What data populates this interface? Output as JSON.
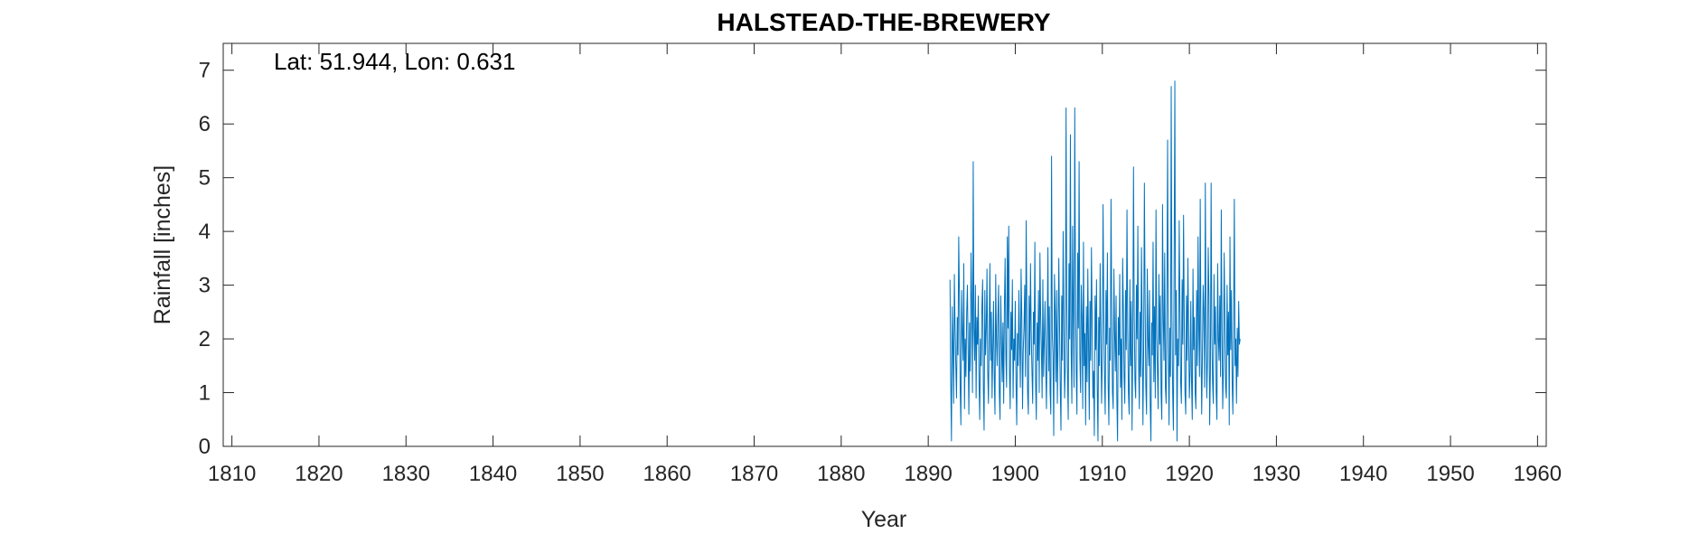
{
  "chart_data": {
    "type": "line",
    "title": "HALSTEAD-THE-BREWERY",
    "annotation": "Lat: 51.944, Lon: 0.631",
    "xlabel": "Year",
    "ylabel": "Rainfall [inches]",
    "xlim": [
      1809,
      1961
    ],
    "ylim": [
      0,
      7.5
    ],
    "xticks": [
      1810,
      1820,
      1830,
      1840,
      1850,
      1860,
      1870,
      1880,
      1890,
      1900,
      1910,
      1920,
      1930,
      1940,
      1950,
      1960
    ],
    "yticks": [
      0,
      1,
      2,
      3,
      4,
      5,
      6,
      7
    ],
    "grid": false,
    "series_color": "#0072BD",
    "series": [
      {
        "x_start": 1892.5,
        "step": 0.08333,
        "values": [
          3.1,
          1.2,
          0.1,
          2.6,
          1.9,
          0.8,
          3.2,
          2.2,
          1.5,
          0.9,
          2.4,
          1.7,
          3.9,
          2.8,
          1.1,
          0.4,
          2.9,
          2.1,
          1.6,
          3.4,
          0.7,
          2.0,
          1.3,
          2.5,
          3.0,
          1.8,
          0.6,
          2.3,
          1.4,
          3.6,
          2.7,
          1.0,
          5.3,
          2.2,
          1.6,
          3.0,
          0.9,
          2.4,
          1.9,
          2.8,
          1.2,
          0.5,
          2.0,
          1.5,
          2.6,
          3.1,
          1.1,
          0.3,
          2.9,
          1.7,
          2.2,
          3.3,
          1.4,
          0.8,
          2.1,
          3.4,
          1.6,
          2.5,
          0.9,
          1.8,
          2.7,
          1.3,
          0.6,
          3.2,
          2.0,
          1.5,
          2.4,
          3.0,
          1.0,
          0.5,
          2.8,
          1.9,
          1.2,
          2.3,
          0.8,
          2.6,
          3.5,
          1.7,
          1.1,
          3.9,
          2.2,
          4.1,
          1.4,
          0.7,
          2.5,
          1.8,
          3.1,
          0.9,
          2.0,
          1.6,
          2.7,
          1.2,
          0.4,
          2.1,
          1.5,
          2.9,
          1.9,
          1.1,
          3.3,
          2.4,
          0.7,
          1.8,
          2.2,
          3.0,
          1.3,
          4.2,
          2.6,
          1.0,
          0.6,
          2.8,
          1.7,
          3.4,
          2.1,
          1.4,
          0.8,
          2.5,
          1.9,
          3.8,
          1.2,
          0.5,
          2.3,
          1.6,
          2.9,
          1.0,
          3.6,
          2.4,
          1.8,
          0.9,
          3.1,
          1.3,
          2.0,
          2.7,
          1.5,
          0.7,
          2.2,
          3.7,
          1.4,
          2.6,
          1.0,
          0.6,
          5.4,
          2.1,
          1.7,
          0.2,
          3.2,
          2.5,
          1.2,
          2.9,
          0.8,
          1.9,
          3.5,
          2.3,
          1.1,
          0.3,
          2.8,
          1.6,
          4.0,
          2.2,
          0.9,
          1.5,
          6.3,
          2.7,
          1.3,
          0.5,
          3.4,
          2.0,
          5.8,
          1.8,
          0.8,
          4.1,
          2.5,
          1.1,
          6.3,
          2.9,
          1.4,
          0.6,
          3.6,
          2.2,
          5.3,
          1.7,
          1.0,
          3.0,
          2.4,
          0.7,
          3.8,
          1.5,
          2.1,
          0.4,
          2.6,
          1.2,
          3.3,
          1.9,
          0.5,
          2.7,
          1.6,
          3.7,
          2.3,
          0.9,
          1.4,
          0.2,
          2.8,
          1.8,
          3.1,
          1.1,
          0.1,
          2.4,
          1.5,
          3.4,
          2.0,
          0.8,
          1.7,
          4.5,
          2.6,
          1.3,
          0.6,
          2.9,
          1.9,
          3.6,
          1.2,
          0.4,
          2.2,
          1.6,
          4.6,
          2.5,
          1.0,
          0.7,
          3.3,
          2.1,
          1.4,
          2.8,
          0.9,
          0.1,
          2.4,
          1.7,
          3.2,
          1.1,
          2.0,
          0.5,
          3.5,
          2.6,
          1.3,
          0.8,
          2.9,
          1.8,
          4.4,
          2.2,
          1.0,
          0.6,
          3.1,
          1.5,
          2.7,
          0.3,
          1.9,
          5.2,
          2.4,
          1.2,
          0.9,
          3.0,
          2.0,
          4.1,
          1.6,
          0.7,
          2.5,
          1.3,
          3.7,
          2.2,
          0.4,
          1.8,
          4.9,
          2.7,
          1.1,
          0.6,
          3.3,
          2.0,
          1.5,
          2.9,
          0.8,
          0.1,
          2.3,
          1.7,
          3.8,
          1.2,
          2.6,
          0.9,
          4.4,
          2.1,
          1.4,
          0.7,
          3.2,
          1.9,
          2.8,
          1.0,
          0.5,
          4.5,
          2.4,
          1.6,
          3.6,
          1.1,
          0.8,
          2.7,
          5.7,
          1.8,
          0.4,
          2.2,
          1.3,
          6.7,
          2.5,
          1.0,
          0.3,
          3.4,
          6.8,
          1.7,
          2.9,
          0.1,
          2.0,
          1.5,
          4.2,
          2.6,
          1.2,
          0.8,
          3.1,
          1.9,
          4.3,
          2.3,
          1.0,
          0.6,
          2.8,
          1.6,
          3.5,
          2.1,
          0.9,
          1.4,
          2.7,
          1.2,
          0.5,
          3.3,
          1.8,
          2.4,
          1.0,
          0.7,
          2.9,
          1.5,
          3.9,
          2.2,
          1.3,
          4.6,
          2.0,
          0.6,
          1.7,
          3.0,
          2.5,
          1.1,
          4.9,
          2.3,
          0.9,
          1.6,
          3.7,
          2.8,
          0.4,
          1.4,
          4.9,
          2.1,
          1.2,
          0.8,
          3.2,
          1.9,
          2.6,
          1.0,
          0.5,
          3.4,
          2.0,
          1.6,
          2.8,
          1.3,
          4.4,
          2.2,
          0.7,
          1.5,
          3.6,
          2.4,
          1.1,
          0.9,
          3.0,
          1.7,
          2.5,
          0.4,
          3.9,
          1.8,
          2.9,
          1.2,
          0.6,
          2.3,
          4.6,
          1.5,
          2.0,
          0.8,
          2.2,
          1.3,
          2.7,
          1.9,
          2.0
        ]
      }
    ]
  }
}
